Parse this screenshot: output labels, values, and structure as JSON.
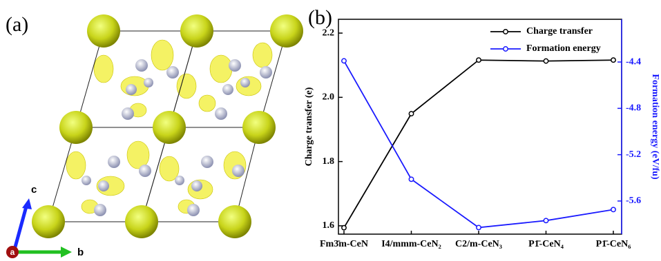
{
  "panel_labels": [
    "(a)",
    "(b)"
  ],
  "crystal_axes": [
    "c",
    "a",
    "b"
  ],
  "chart_data": {
    "type": "line",
    "categories": [
      "Fm3̄m-CeN",
      "I4/mmm-CeN₂",
      "C2/m-CeN₃",
      "P1̄-CeN₄",
      "P1̄-CeN₆"
    ],
    "ylabel": "Charge transfer (e)",
    "y2label": "Formation energy (eV/fu)",
    "ylim": [
      1.574,
      2.243
    ],
    "yticks": [
      1.6,
      1.8,
      {
        "value": 2,
        "label": "2.0"
      },
      2.2
    ],
    "y2lim": [
      -5.886,
      -4.031
    ],
    "y2ticks": [
      -4.4,
      -4.8,
      -5.2,
      -5.6
    ],
    "legend": "upper right",
    "series": [
      {
        "name": "Charge transfer",
        "color": "#000000",
        "values": [
          1.594,
          1.949,
          2.116,
          2.113,
          2.116
        ]
      },
      {
        "name": "Formation energy",
        "color": "#1a1aff",
        "axis": "y2",
        "values": [
          -4.39,
          -5.412,
          -5.829,
          -5.769,
          -5.674
        ]
      }
    ]
  }
}
